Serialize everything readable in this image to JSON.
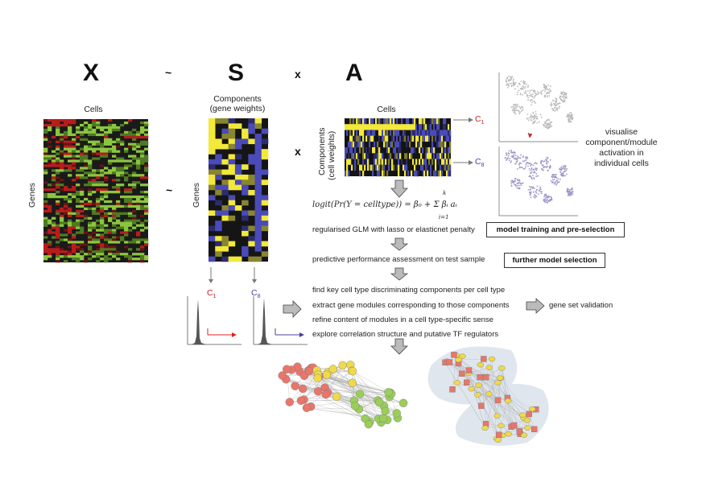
{
  "equation": {
    "x": "X",
    "tilde": "~",
    "s": "S",
    "times": "x",
    "a": "A"
  },
  "x_matrix": {
    "cols_label": "Cells",
    "rows_label": "Genes"
  },
  "s_matrix": {
    "cols_label_line1": "Components",
    "cols_label_line2": "(gene weights)",
    "rows_label": "Genes"
  },
  "a_matrix": {
    "cols_label": "Cells",
    "rows_label_line1": "Components",
    "rows_label_line2": "(cell weights)"
  },
  "components": {
    "c1": "C",
    "c1_sub": "1",
    "c8": "C",
    "c8_sub": "8"
  },
  "umap_note": {
    "line1": "visualise",
    "line2": "component/module",
    "line3": "activation in",
    "line4": "individual cells"
  },
  "formula": {
    "text": "logit(Pr(Y = celltype)) = β₀ + Σ βᵢ aᵢ",
    "sum_top": "k",
    "sum_bottom": "i=1"
  },
  "steps": {
    "glm": "regularised GLM with lasso or elasticnet penalty",
    "assessment": "predictive performance assessment on test sample",
    "find": "find key cell type discriminating components per cell type",
    "extract": "extract gene modules corresponding to those components",
    "refine": "refine content of modules in a cell type-specific sense",
    "explore": "explore correlation structure and putative TF regulators"
  },
  "boxes": {
    "training": "model training and pre-selection",
    "further": "further model selection"
  },
  "validation": "gene set validation",
  "colors": {
    "heat_green": "#8cc63f",
    "heat_red": "#b81c1c",
    "heat_black": "#111111",
    "blue": "#4a4ab8",
    "yellow": "#f2e93a",
    "c1_red": "#c42424",
    "c8_purple": "#4a3fa0",
    "arrow_gray": "#9a9a9a",
    "net_red": "#e8766a",
    "net_green": "#9acd5a",
    "net_yellow": "#f0d94a",
    "net_bg": "#dfe6ee"
  }
}
